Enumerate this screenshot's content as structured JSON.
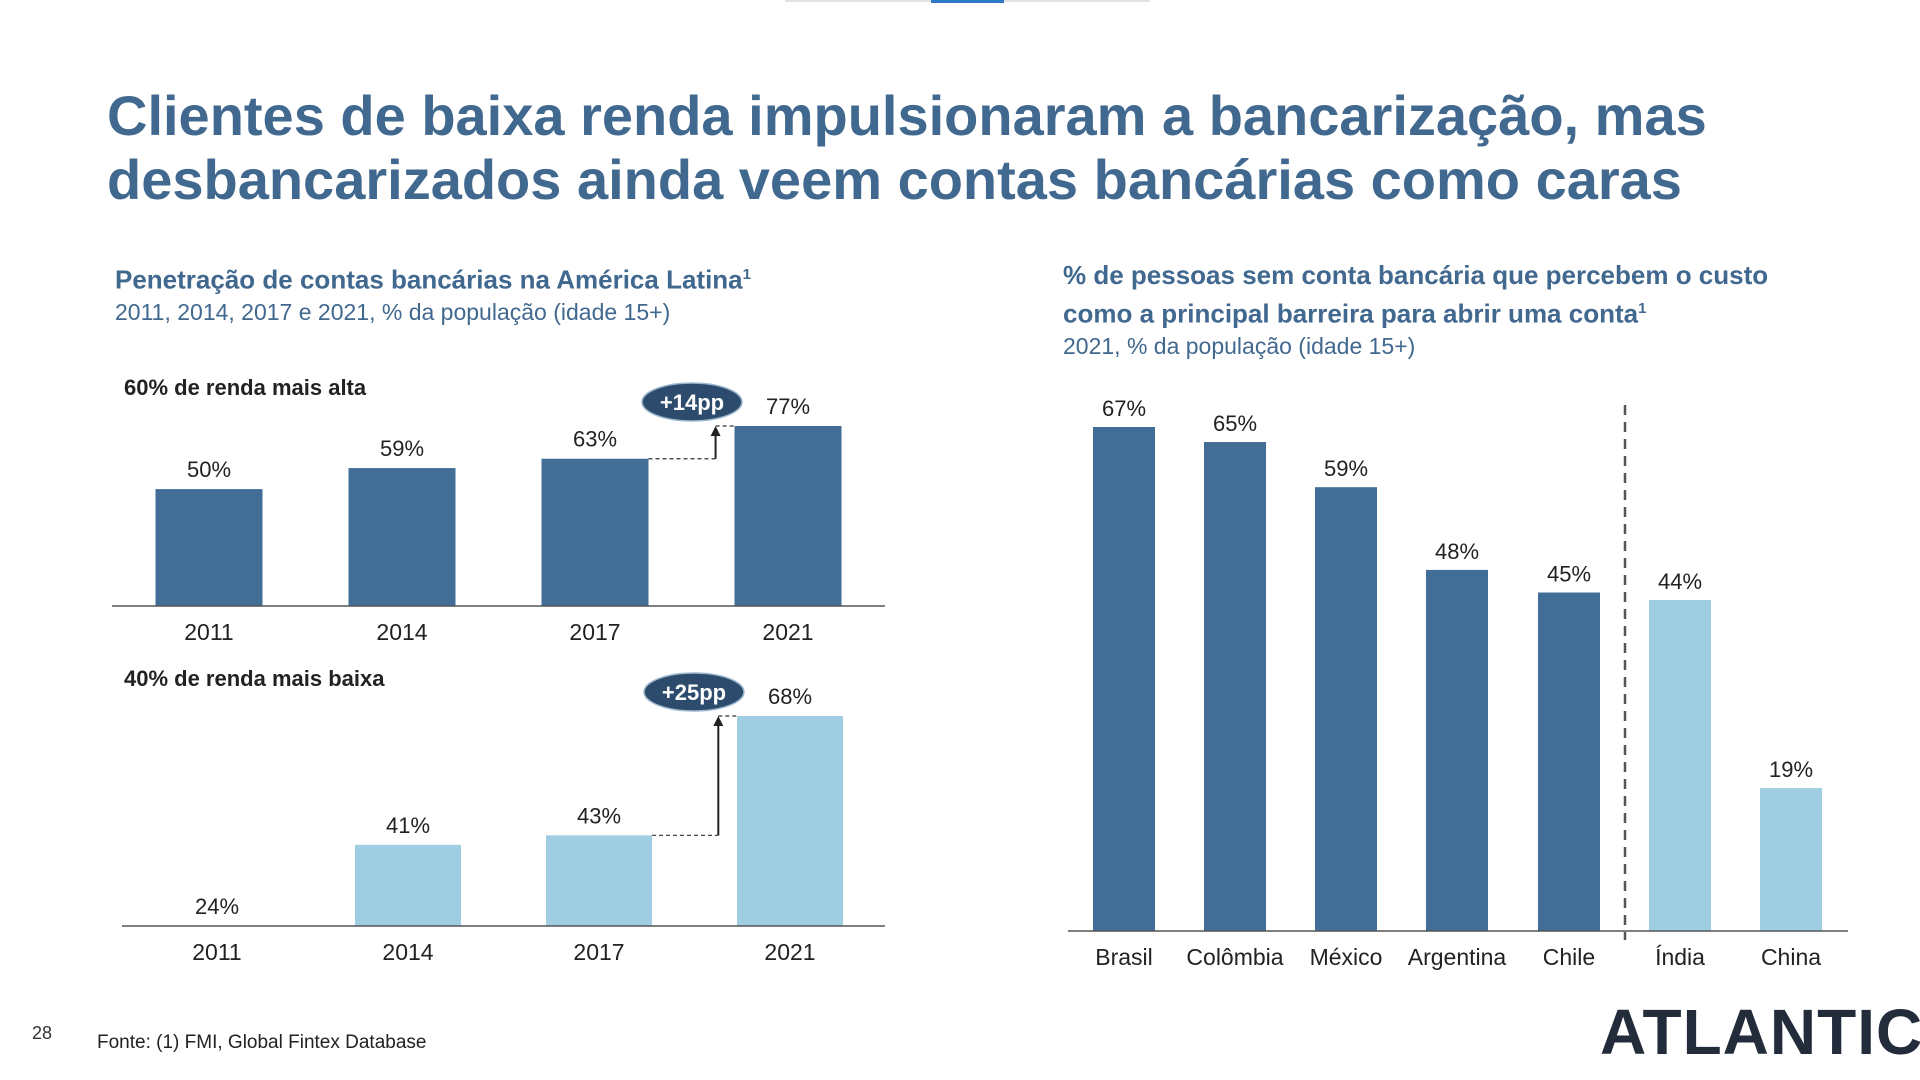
{
  "page": {
    "title_line1": "Clientes de baixa renda impulsionaram a bancarização, mas",
    "title_line2": "desbancarizados ainda veem contas bancárias como caras",
    "page_number": "28",
    "source": "Fonte: (1) FMI, Global Fintex Database",
    "logo": "ATLANTICO"
  },
  "left": {
    "heading": "Penetração de contas bancárias na América Latina",
    "heading_sup": "1",
    "subheading": "2011, 2014, 2017 e 2021, % da população (idade 15+)"
  },
  "right": {
    "heading_line1": "% de pessoas sem conta bancária que percebem o custo",
    "heading_line2": "como a principal barreira para abrir uma conta",
    "heading_sup": "1",
    "subheading": "2021, % da população (idade 15+)"
  },
  "colors": {
    "dark": "#416d96",
    "light": "#9fcee3",
    "title": "#41688f",
    "badge": "#2d4c6d"
  },
  "chart_data": [
    {
      "type": "bar",
      "title": "60% de renda mais alta",
      "categories": [
        "2011",
        "2014",
        "2017",
        "2021"
      ],
      "values": [
        50,
        59,
        63,
        77
      ],
      "labels": [
        "50%",
        "59%",
        "63%",
        "77%"
      ],
      "annotation": "+14pp",
      "ylim": [
        0,
        77
      ]
    },
    {
      "type": "bar",
      "title": "40% de renda mais baixa",
      "categories": [
        "2011",
        "2014",
        "2017",
        "2021"
      ],
      "values": [
        24,
        41,
        43,
        68
      ],
      "labels": [
        "24%",
        "41%",
        "43%",
        "68%"
      ],
      "annotation": "+25pp",
      "ylim": [
        24,
        68
      ]
    },
    {
      "type": "bar",
      "title": "% de pessoas sem conta bancária que percebem o custo como a principal barreira para abrir uma conta",
      "categories": [
        "Brasil",
        "Colômbia",
        "México",
        "Argentina",
        "Chile",
        "Índia",
        "China"
      ],
      "values": [
        67,
        65,
        59,
        48,
        45,
        44,
        19
      ],
      "labels": [
        "67%",
        "65%",
        "59%",
        "48%",
        "45%",
        "44%",
        "19%"
      ],
      "latam_count": 5,
      "ylim": [
        0,
        67
      ]
    }
  ]
}
